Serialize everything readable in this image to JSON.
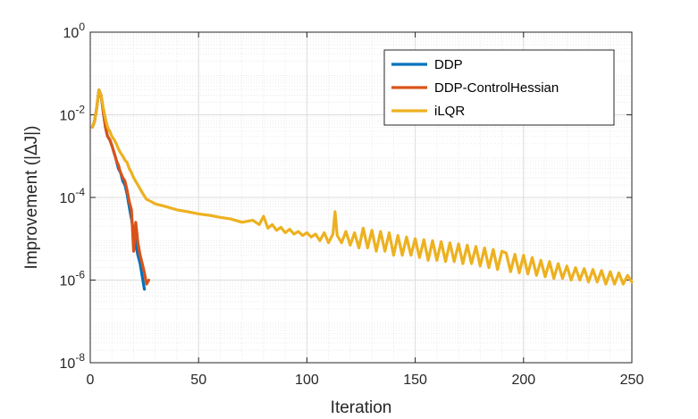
{
  "chart_data": {
    "type": "line",
    "title": "",
    "xlabel": "Iteration",
    "ylabel": "Improvement (|ΔJ|)",
    "xlim": [
      0,
      250
    ],
    "ylim": [
      1e-08,
      1
    ],
    "yscale": "log",
    "grid": true,
    "minor_grid": true,
    "legend_position": "top-right",
    "x_ticks": [
      {
        "value": 0,
        "label": "0"
      },
      {
        "value": 50,
        "label": "50"
      },
      {
        "value": 100,
        "label": "100"
      },
      {
        "value": 150,
        "label": "150"
      },
      {
        "value": 200,
        "label": "200"
      },
      {
        "value": 250,
        "label": "250"
      }
    ],
    "y_ticks": [
      {
        "value": 1e-08,
        "base": "10",
        "exp": "-8"
      },
      {
        "value": 1e-06,
        "base": "10",
        "exp": "-6"
      },
      {
        "value": 0.0001,
        "base": "10",
        "exp": "-4"
      },
      {
        "value": 0.01,
        "base": "10",
        "exp": "-2"
      },
      {
        "value": 1,
        "base": "10",
        "exp": "0"
      }
    ],
    "series": [
      {
        "name": "DDP",
        "color": "#0072BD",
        "x": [
          1,
          2,
          3,
          4,
          5,
          6,
          7,
          8,
          9,
          10,
          11,
          12,
          13,
          14,
          15,
          16,
          17,
          18,
          19,
          20,
          21,
          22,
          23,
          24,
          25
        ],
        "y": [
          0.005,
          0.007,
          0.015,
          0.04,
          0.03,
          0.012,
          0.005,
          0.003,
          0.0025,
          0.0018,
          0.0012,
          0.0008,
          0.0005,
          0.0004,
          0.00025,
          0.0002,
          0.00012,
          6e-05,
          3e-05,
          1.5e-05,
          7e-06,
          4e-06,
          2.5e-06,
          1.2e-06,
          6e-07
        ]
      },
      {
        "name": "DDP-ControlHessian",
        "color": "#D95319",
        "x": [
          1,
          2,
          3,
          4,
          5,
          6,
          7,
          8,
          9,
          10,
          11,
          12,
          13,
          14,
          15,
          16,
          17,
          18,
          19,
          20,
          21,
          22,
          23,
          24,
          25,
          26,
          27
        ],
        "y": [
          0.005,
          0.007,
          0.015,
          0.04,
          0.03,
          0.012,
          0.005,
          0.003,
          0.0025,
          0.0018,
          0.0012,
          0.0008,
          0.0006,
          0.0004,
          0.0003,
          0.00025,
          0.00015,
          8e-05,
          5e-05,
          5e-06,
          2.5e-05,
          8e-06,
          4e-06,
          2.5e-06,
          1.5e-06,
          8e-07,
          1e-06
        ]
      },
      {
        "name": "iLQR",
        "color": "#EDB120",
        "x": [
          1,
          2,
          3,
          4,
          5,
          6,
          7,
          8,
          9,
          10,
          11,
          12,
          13,
          14,
          15,
          16,
          17,
          18,
          19,
          20,
          22,
          24,
          26,
          28,
          30,
          35,
          40,
          45,
          50,
          55,
          60,
          65,
          70,
          75,
          78,
          80,
          82,
          84,
          86,
          88,
          90,
          92,
          94,
          96,
          98,
          100,
          102,
          104,
          106,
          108,
          110,
          112,
          113,
          114,
          116,
          118,
          120,
          122,
          124,
          126,
          128,
          130,
          132,
          134,
          136,
          138,
          140,
          142,
          144,
          146,
          148,
          150,
          152,
          154,
          156,
          158,
          160,
          162,
          164,
          166,
          168,
          170,
          172,
          174,
          176,
          178,
          180,
          182,
          184,
          186,
          188,
          190,
          192,
          194,
          196,
          198,
          200,
          202,
          204,
          206,
          208,
          210,
          212,
          214,
          216,
          218,
          220,
          222,
          224,
          226,
          228,
          230,
          232,
          234,
          236,
          238,
          240,
          242,
          244,
          246,
          248,
          250
        ],
        "y": [
          0.005,
          0.007,
          0.015,
          0.04,
          0.03,
          0.015,
          0.008,
          0.005,
          0.004,
          0.003,
          0.0025,
          0.002,
          0.0015,
          0.0012,
          0.001,
          0.0008,
          0.0007,
          0.0005,
          0.0004,
          0.0003,
          0.0002,
          0.00013,
          9e-05,
          8e-05,
          7e-05,
          6e-05,
          5e-05,
          4.5e-05,
          4e-05,
          3.7e-05,
          3.3e-05,
          3e-05,
          2.5e-05,
          2.8e-05,
          2.2e-05,
          3.5e-05,
          1.8e-05,
          2.2e-05,
          1.6e-05,
          1.9e-05,
          1.4e-05,
          1.7e-05,
          1.3e-05,
          1.5e-05,
          1.2e-05,
          1.4e-05,
          1.1e-05,
          1.3e-05,
          9e-06,
          1.4e-05,
          8e-06,
          1.3e-05,
          4.5e-05,
          1.2e-05,
          8e-06,
          1.5e-05,
          7e-06,
          1.4e-05,
          6e-06,
          1.8e-05,
          6e-06,
          1.6e-05,
          5e-06,
          1.5e-05,
          5e-06,
          1.4e-05,
          4e-06,
          1.2e-05,
          4e-06,
          1.1e-05,
          4e-06,
          1e-05,
          3.5e-06,
          9.5e-06,
          3e-06,
          9e-06,
          3e-06,
          8.5e-06,
          2.8e-06,
          8e-06,
          2.8e-06,
          7.5e-06,
          2.5e-06,
          7e-06,
          2.5e-06,
          6.5e-06,
          2.2e-06,
          6e-06,
          2e-06,
          5.5e-06,
          1.8e-06,
          5e-06,
          4.5e-06,
          1.6e-06,
          4.2e-06,
          1.5e-06,
          4e-06,
          1.4e-06,
          3.5e-06,
          1.3e-06,
          3e-06,
          1.2e-06,
          2.8e-06,
          1.1e-06,
          2.5e-06,
          1.1e-06,
          2.2e-06,
          1e-06,
          2e-06,
          1e-06,
          1.9e-06,
          9e-07,
          1.8e-06,
          9e-07,
          1.7e-06,
          8e-07,
          1.6e-06,
          8e-07,
          1.5e-06,
          8e-07,
          1.3e-06,
          9e-07
        ]
      }
    ]
  }
}
